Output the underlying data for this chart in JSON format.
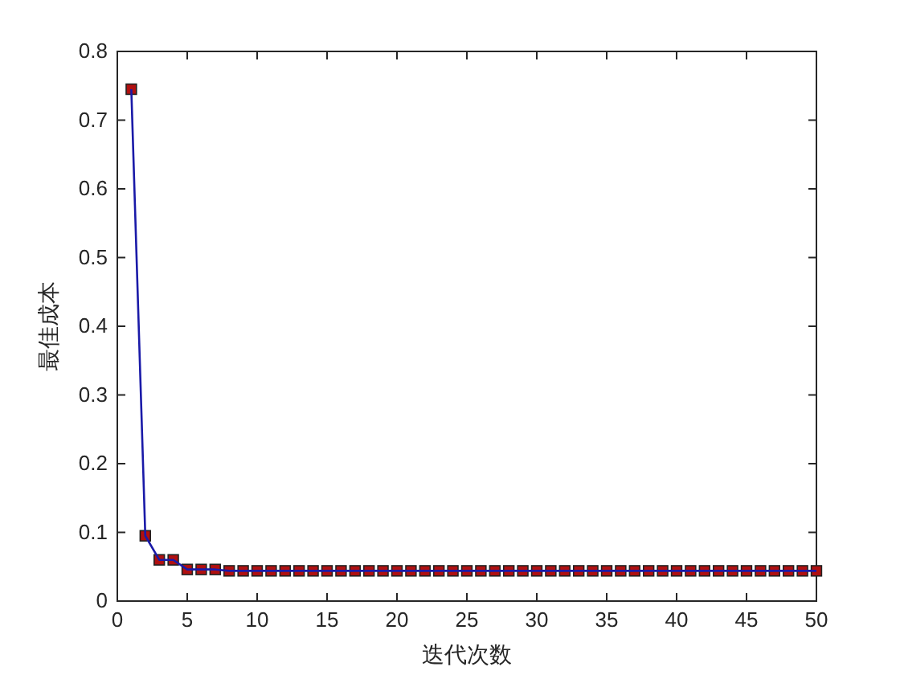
{
  "chart_data": {
    "type": "line",
    "xlabel": "迭代次数",
    "ylabel": "最佳成本",
    "x": [
      1,
      2,
      3,
      4,
      5,
      6,
      7,
      8,
      9,
      10,
      11,
      12,
      13,
      14,
      15,
      16,
      17,
      18,
      19,
      20,
      21,
      22,
      23,
      24,
      25,
      26,
      27,
      28,
      29,
      30,
      31,
      32,
      33,
      34,
      35,
      36,
      37,
      38,
      39,
      40,
      41,
      42,
      43,
      44,
      45,
      46,
      47,
      48,
      49,
      50
    ],
    "series": [
      {
        "color": "#1a1aa8",
        "colors": [
          "#b01010",
          "#b01010",
          "#b01010",
          "#b01010",
          "#b01010",
          "#b01010",
          "#b01010",
          "#b01010",
          "#b01010",
          "#b01010",
          "#b01010",
          "#b01010",
          "#b01010",
          "#b01010",
          "#b01010",
          "#b01010",
          "#b01010",
          "#b01010",
          "#b01010",
          "#b01010",
          "#b01010",
          "#b01010",
          "#b01010",
          "#b01010",
          "#b01010",
          "#b01010",
          "#b01010",
          "#b01010",
          "#b01010",
          "#b01010",
          "#b01010",
          "#b01010",
          "#b01010",
          "#b01010",
          "#b01010",
          "#b01010",
          "#b01010",
          "#b01010",
          "#b01010",
          "#b01010",
          "#b01010",
          "#b01010",
          "#b01010",
          "#b01010",
          "#b01010",
          "#b01010",
          "#b01010",
          "#b01010",
          "#b01010",
          "#b01010"
        ],
        "values": [
          0.745,
          0.095,
          0.06,
          0.06,
          0.046,
          0.046,
          0.046,
          0.044,
          0.044,
          0.044,
          0.044,
          0.044,
          0.044,
          0.044,
          0.044,
          0.044,
          0.044,
          0.044,
          0.044,
          0.044,
          0.044,
          0.044,
          0.044,
          0.044,
          0.044,
          0.044,
          0.044,
          0.044,
          0.044,
          0.044,
          0.044,
          0.044,
          0.044,
          0.044,
          0.044,
          0.044,
          0.044,
          0.044,
          0.044,
          0.044,
          0.044,
          0.044,
          0.044,
          0.044,
          0.044,
          0.044,
          0.044,
          0.044,
          0.044,
          0.044
        ]
      }
    ],
    "xlim": [
      0,
      50
    ],
    "xticks": [
      0,
      5,
      10,
      15,
      20,
      25,
      30,
      35,
      40,
      45,
      50
    ],
    "ylim": [
      0,
      0.8
    ],
    "yticks": [
      0,
      0.1,
      0.2,
      0.3,
      0.4,
      0.5,
      0.6,
      0.7,
      0.8
    ],
    "grid": false,
    "marker": "square",
    "line_style": "solid"
  }
}
